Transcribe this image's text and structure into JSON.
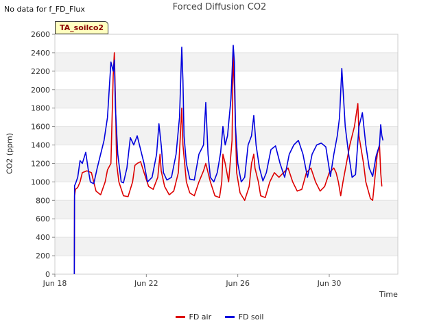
{
  "header": {
    "no_data_text": "No data for f_FD_Flux",
    "badge_label": "TA_soilco2"
  },
  "chart_data": {
    "type": "line",
    "title": "Forced Diffusion CO2",
    "xlabel": "Time",
    "ylabel": "CO2 (ppm)",
    "x_unit": "days since Jun 18",
    "xlim": [
      0,
      15
    ],
    "ylim": [
      0,
      2600
    ],
    "grid": true,
    "legend_position": "bottom-center",
    "y_ticks": [
      0,
      200,
      400,
      600,
      800,
      1000,
      1200,
      1400,
      1600,
      1800,
      2000,
      2200,
      2400,
      2600
    ],
    "x_ticks": [
      {
        "value": 0,
        "label": "Jun 18"
      },
      {
        "value": 4,
        "label": "Jun 22"
      },
      {
        "value": 8,
        "label": "Jun 26"
      },
      {
        "value": 12,
        "label": "Jun 30"
      }
    ],
    "series": [
      {
        "name": "FD air",
        "color": "#dd0000",
        "x": [
          0.85,
          0.86,
          0.9,
          1.0,
          1.1,
          1.2,
          1.4,
          1.6,
          1.8,
          2.0,
          2.2,
          2.3,
          2.45,
          2.55,
          2.6,
          2.65,
          2.7,
          2.8,
          3.0,
          3.2,
          3.4,
          3.5,
          3.6,
          3.75,
          3.9,
          4.1,
          4.3,
          4.5,
          4.6,
          4.65,
          4.8,
          5.0,
          5.2,
          5.4,
          5.5,
          5.55,
          5.6,
          5.75,
          5.9,
          6.1,
          6.3,
          6.5,
          6.6,
          6.8,
          7.0,
          7.2,
          7.3,
          7.35,
          7.45,
          7.6,
          7.75,
          7.8,
          7.85,
          7.95,
          8.1,
          8.3,
          8.5,
          8.6,
          8.7,
          8.75,
          8.9,
          9.0,
          9.2,
          9.4,
          9.6,
          9.8,
          10.0,
          10.2,
          10.4,
          10.6,
          10.8,
          11.0,
          11.2,
          11.4,
          11.6,
          11.8,
          12.0,
          12.2,
          12.3,
          12.4,
          12.5,
          12.6,
          12.75,
          12.9,
          13.1,
          13.25,
          13.3,
          13.5,
          13.6,
          13.8,
          13.9,
          14.1,
          14.2,
          14.25,
          14.3
        ],
        "values": [
          0,
          850,
          920,
          940,
          1000,
          1100,
          1120,
          1100,
          900,
          860,
          1000,
          1130,
          1200,
          2150,
          2400,
          1900,
          1200,
          1000,
          850,
          840,
          1000,
          1180,
          1200,
          1220,
          1100,
          950,
          920,
          1050,
          1300,
          1120,
          950,
          860,
          900,
          1100,
          1550,
          1800,
          1400,
          1000,
          880,
          850,
          1000,
          1120,
          1200,
          1000,
          850,
          830,
          1000,
          1300,
          1200,
          1000,
          1450,
          2400,
          2050,
          1100,
          880,
          800,
          950,
          1200,
          1300,
          1150,
          1000,
          850,
          830,
          1000,
          1100,
          1050,
          1100,
          1150,
          1000,
          900,
          920,
          1100,
          1150,
          1000,
          900,
          950,
          1100,
          1150,
          1100,
          1000,
          850,
          1000,
          1200,
          1400,
          1600,
          1850,
          1500,
          1200,
          1000,
          820,
          800,
          1300,
          1400,
          1100,
          950
        ],
        "more": [
          13.0,
          13.2,
          13.5,
          13.8,
          14.0,
          14.2,
          14.3,
          14.35
        ]
      },
      {
        "name": "FD soil",
        "color": "#0000dd",
        "x": [
          0.85,
          0.86,
          0.9,
          1.0,
          1.1,
          1.2,
          1.35,
          1.45,
          1.55,
          1.7,
          1.85,
          2.0,
          2.15,
          2.3,
          2.45,
          2.55,
          2.6,
          2.65,
          2.75,
          2.9,
          3.0,
          3.15,
          3.3,
          3.45,
          3.6,
          3.75,
          3.9,
          4.05,
          4.25,
          4.45,
          4.55,
          4.65,
          4.75,
          4.9,
          5.1,
          5.3,
          5.45,
          5.55,
          5.6,
          5.65,
          5.75,
          5.9,
          6.1,
          6.3,
          6.5,
          6.6,
          6.7,
          6.8,
          6.95,
          7.1,
          7.25,
          7.35,
          7.45,
          7.55,
          7.7,
          7.8,
          7.85,
          7.9,
          8.0,
          8.15,
          8.3,
          8.45,
          8.6,
          8.7,
          8.8,
          8.95,
          9.1,
          9.25,
          9.45,
          9.65,
          9.85,
          10.05,
          10.25,
          10.45,
          10.65,
          10.85,
          11.05,
          11.25,
          11.45,
          11.65,
          11.85,
          12.05,
          12.2,
          12.35,
          12.45,
          12.55,
          12.7,
          12.85,
          13.0,
          13.15,
          13.3,
          13.45,
          13.6,
          13.75,
          13.9,
          14.05,
          14.2,
          14.25,
          14.3,
          14.35
        ],
        "values": [
          0,
          960,
          980,
          1050,
          1230,
          1200,
          1320,
          1150,
          1000,
          980,
          1150,
          1300,
          1450,
          1700,
          2300,
          2200,
          2320,
          1800,
          1300,
          1000,
          990,
          1150,
          1480,
          1400,
          1500,
          1350,
          1200,
          1000,
          1050,
          1300,
          1630,
          1400,
          1100,
          1020,
          1050,
          1300,
          1700,
          2460,
          2100,
          1500,
          1200,
          1030,
          1020,
          1300,
          1400,
          1860,
          1300,
          1050,
          1000,
          1100,
          1320,
          1600,
          1400,
          1500,
          1900,
          2480,
          2300,
          1600,
          1200,
          1000,
          1050,
          1400,
          1500,
          1720,
          1400,
          1150,
          1010,
          1100,
          1350,
          1390,
          1200,
          1050,
          1300,
          1400,
          1450,
          1300,
          1050,
          1300,
          1400,
          1420,
          1380,
          1060,
          1300,
          1500,
          1700,
          2230,
          1600,
          1300,
          1050,
          1080,
          1600,
          1750,
          1400,
          1150,
          1060,
          1280,
          1400,
          1620,
          1500,
          1450
        ]
      }
    ]
  }
}
